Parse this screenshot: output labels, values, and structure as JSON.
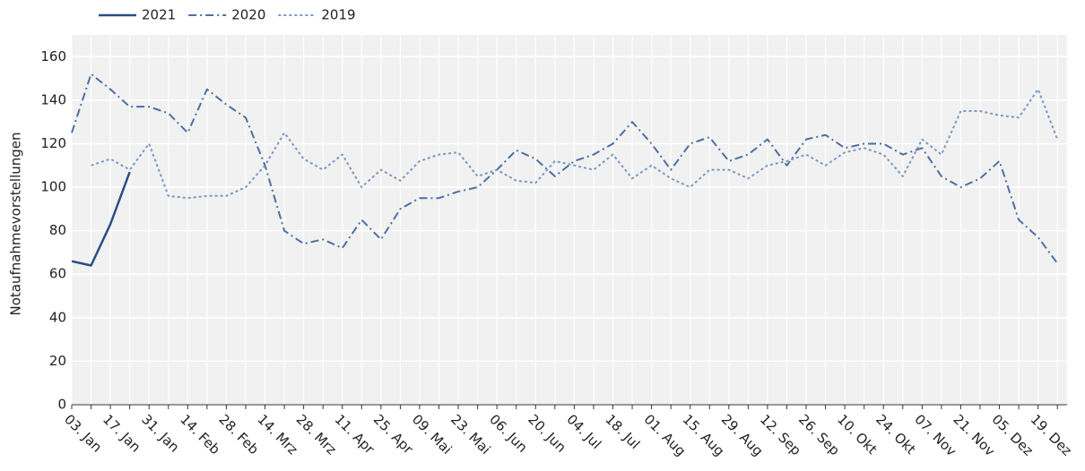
{
  "chart_data": {
    "type": "line",
    "y_label": "Notaufnahmevorstellungen",
    "categories": [
      "03. Jan",
      null,
      "17. Jan",
      null,
      "31. Jan",
      null,
      "14. Feb",
      null,
      "28. Feb",
      null,
      "14. Mrz",
      null,
      "28. Mrz",
      null,
      "11. Apr",
      null,
      "25. Apr",
      null,
      "09. Mai",
      null,
      "23. Mai",
      null,
      "06. Jun",
      null,
      "20. Jun",
      null,
      "04. Jul",
      null,
      "18. Jul",
      null,
      "01. Aug",
      null,
      "15. Aug",
      null,
      "29. Aug",
      null,
      "12. Sep",
      null,
      "26. Sep",
      null,
      "10. Okt",
      null,
      "24. Okt",
      null,
      "07. Nov",
      null,
      "21. Nov",
      null,
      "05. Dez",
      null,
      "19. Dez",
      null
    ],
    "series": [
      {
        "name": "2021",
        "color": "#2b4d86",
        "dash": "solid",
        "values": [
          66,
          64,
          83,
          107,
          null,
          null,
          null,
          null,
          null,
          null,
          null,
          null,
          null,
          null,
          null,
          null,
          null,
          null,
          null,
          null,
          null,
          null,
          null,
          null,
          null,
          null,
          null,
          null,
          null,
          null,
          null,
          null,
          null,
          null,
          null,
          null,
          null,
          null,
          null,
          null,
          null,
          null,
          null,
          null,
          null,
          null,
          null,
          null,
          null,
          null,
          null,
          null
        ]
      },
      {
        "name": "2020",
        "color": "#4d6fa3",
        "dash": "dashdot",
        "values": [
          125,
          152,
          145,
          137,
          137,
          134,
          125,
          145,
          138,
          132,
          110,
          80,
          74,
          76,
          72,
          85,
          76,
          90,
          95,
          95,
          98,
          100,
          108,
          117,
          113,
          105,
          112,
          115,
          120,
          130,
          120,
          108,
          120,
          123,
          112,
          115,
          122,
          110,
          122,
          124,
          118,
          120,
          120,
          115,
          118,
          105,
          100,
          104,
          112,
          85,
          77,
          65
        ]
      },
      {
        "name": "2019",
        "color": "#7c98c4",
        "dash": "dot",
        "values": [
          null,
          110,
          113,
          108,
          120,
          96,
          95,
          96,
          96,
          100,
          110,
          125,
          113,
          108,
          115,
          100,
          108,
          103,
          112,
          115,
          116,
          105,
          108,
          103,
          102,
          112,
          110,
          108,
          115,
          104,
          110,
          104,
          100,
          108,
          108,
          104,
          110,
          112,
          115,
          110,
          116,
          118,
          115,
          105,
          122,
          115,
          135,
          135,
          133,
          132,
          145,
          122
        ]
      }
    ],
    "ylim": [
      0,
      170
    ],
    "yticks": [
      0,
      20,
      40,
      60,
      80,
      100,
      120,
      140,
      160
    ],
    "grid": true,
    "legend": "top-left"
  }
}
